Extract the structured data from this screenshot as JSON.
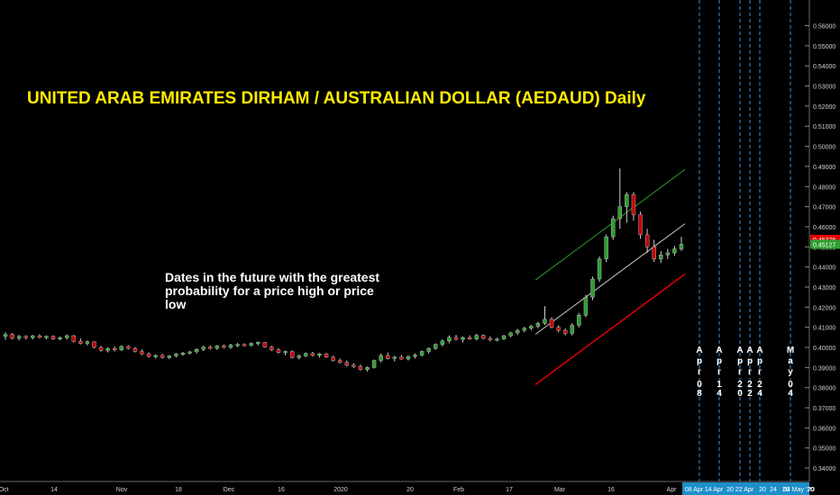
{
  "chart_data": {
    "type": "candlestick",
    "title": "UNITED ARAB EMIRATES DIRHAM / AUSTRALIAN DOLLAR (AEDAUD) Daily",
    "annotation": "Dates in the future with the greatest probability for a price high or price low",
    "x_ticks": [
      "Oct",
      "14",
      "Nov",
      "18",
      "Dec",
      "16",
      "2020",
      "20",
      "Feb",
      "17",
      "Mar",
      "16",
      "Apr",
      "08 Apr",
      "14 Apr",
      "20",
      "22 Apr",
      "20",
      "24",
      "20",
      "04 May '20",
      "20"
    ],
    "y_ticks": [
      "0.56000",
      "0.55000",
      "0.54000",
      "0.53000",
      "0.52000",
      "0.51000",
      "0.50000",
      "0.49000",
      "0.48000",
      "0.47000",
      "0.46000",
      "0.45000",
      "0.44000",
      "0.43000",
      "0.42000",
      "0.41000",
      "0.40000",
      "0.39000",
      "0.38000",
      "0.37000",
      "0.36000",
      "0.35000",
      "0.34000"
    ],
    "ylim": [
      0.3378,
      0.5656
    ],
    "price_labels": [
      {
        "value": 0.45375,
        "label": "0.45375",
        "color": "#e60000"
      },
      {
        "value": 0.45127,
        "label": "0.45127",
        "color": "#2e9e2e"
      }
    ],
    "future_dates": [
      {
        "label": "Apr 08",
        "x_label": "08 Apr"
      },
      {
        "label": "Apr 14",
        "x_label": "14 Apr"
      },
      {
        "label": "Apr 20",
        "x_label": "20"
      },
      {
        "label": "Apr 22",
        "x_label": "22 Apr"
      },
      {
        "label": "Apr 24",
        "x_label": "24"
      },
      {
        "label": "May 04",
        "x_label": "04 May '20"
      }
    ],
    "channel_lines": [
      {
        "name": "upper",
        "color": "#2e9e2e",
        "from": 0.4335,
        "to": 0.4885
      },
      {
        "name": "middle",
        "color": "#c8c8c8",
        "from": 0.4065,
        "to": 0.4615
      },
      {
        "name": "lower",
        "color": "#e00000",
        "from": 0.3815,
        "to": 0.4365
      }
    ],
    "candles": [
      [
        0.4055,
        0.4075,
        0.4038,
        0.4065
      ],
      [
        0.4065,
        0.4072,
        0.404,
        0.4045
      ],
      [
        0.4045,
        0.4062,
        0.4035,
        0.4055
      ],
      [
        0.4055,
        0.406,
        0.404,
        0.4048
      ],
      [
        0.4048,
        0.4062,
        0.404,
        0.4058
      ],
      [
        0.4058,
        0.4065,
        0.4045,
        0.405
      ],
      [
        0.405,
        0.406,
        0.404,
        0.4055
      ],
      [
        0.4055,
        0.406,
        0.4038,
        0.4042
      ],
      [
        0.4042,
        0.4055,
        0.4035,
        0.4048
      ],
      [
        0.4048,
        0.4065,
        0.404,
        0.4058
      ],
      [
        0.4058,
        0.4062,
        0.4025,
        0.403
      ],
      [
        0.403,
        0.4045,
        0.4015,
        0.402
      ],
      [
        0.402,
        0.4035,
        0.401,
        0.4028
      ],
      [
        0.4028,
        0.403,
        0.3995,
        0.4
      ],
      [
        0.4,
        0.4008,
        0.398,
        0.3985
      ],
      [
        0.3985,
        0.4,
        0.3975,
        0.3995
      ],
      [
        0.3995,
        0.4005,
        0.398,
        0.3988
      ],
      [
        0.3988,
        0.401,
        0.3982,
        0.4005
      ],
      [
        0.4005,
        0.401,
        0.399,
        0.3995
      ],
      [
        0.3995,
        0.4002,
        0.3975,
        0.398
      ],
      [
        0.398,
        0.399,
        0.3962,
        0.3968
      ],
      [
        0.3968,
        0.3975,
        0.395,
        0.3955
      ],
      [
        0.3955,
        0.3965,
        0.3945,
        0.396
      ],
      [
        0.396,
        0.3968,
        0.3945,
        0.395
      ],
      [
        0.395,
        0.3962,
        0.3942,
        0.3958
      ],
      [
        0.3958,
        0.3972,
        0.395,
        0.3968
      ],
      [
        0.3968,
        0.3978,
        0.3958,
        0.3972
      ],
      [
        0.3972,
        0.3982,
        0.3965,
        0.3978
      ],
      [
        0.3978,
        0.3995,
        0.397,
        0.399
      ],
      [
        0.399,
        0.4008,
        0.3982,
        0.4002
      ],
      [
        0.4002,
        0.401,
        0.399,
        0.3995
      ],
      [
        0.3995,
        0.4012,
        0.3988,
        0.4008
      ],
      [
        0.4008,
        0.4015,
        0.3995,
        0.4
      ],
      [
        0.4,
        0.4018,
        0.3992,
        0.4012
      ],
      [
        0.4012,
        0.4022,
        0.4002,
        0.4015
      ],
      [
        0.4015,
        0.402,
        0.4005,
        0.401
      ],
      [
        0.401,
        0.4025,
        0.4005,
        0.402
      ],
      [
        0.402,
        0.403,
        0.401,
        0.4025
      ],
      [
        0.4025,
        0.4028,
        0.3998,
        0.4002
      ],
      [
        0.4002,
        0.4008,
        0.3982,
        0.3988
      ],
      [
        0.3988,
        0.3995,
        0.397,
        0.3975
      ],
      [
        0.3975,
        0.3985,
        0.396,
        0.398
      ],
      [
        0.398,
        0.3985,
        0.3945,
        0.395
      ],
      [
        0.395,
        0.3965,
        0.394,
        0.3958
      ],
      [
        0.3958,
        0.3975,
        0.3952,
        0.397
      ],
      [
        0.397,
        0.3978,
        0.3955,
        0.396
      ],
      [
        0.396,
        0.3972,
        0.395,
        0.3968
      ],
      [
        0.3968,
        0.3972,
        0.3948,
        0.3952
      ],
      [
        0.3952,
        0.3958,
        0.393,
        0.3935
      ],
      [
        0.3935,
        0.3945,
        0.392,
        0.3925
      ],
      [
        0.3925,
        0.3935,
        0.3905,
        0.3912
      ],
      [
        0.3912,
        0.3922,
        0.3898,
        0.3905
      ],
      [
        0.3905,
        0.3915,
        0.3885,
        0.389
      ],
      [
        0.389,
        0.3905,
        0.388,
        0.39
      ],
      [
        0.39,
        0.394,
        0.3895,
        0.3935
      ],
      [
        0.3935,
        0.397,
        0.3925,
        0.396
      ],
      [
        0.396,
        0.3975,
        0.394,
        0.3945
      ],
      [
        0.3945,
        0.3958,
        0.393,
        0.3952
      ],
      [
        0.3952,
        0.3962,
        0.3938,
        0.3942
      ],
      [
        0.3942,
        0.396,
        0.3935,
        0.3955
      ],
      [
        0.3955,
        0.397,
        0.3945,
        0.3962
      ],
      [
        0.3962,
        0.3985,
        0.3955,
        0.398
      ],
      [
        0.398,
        0.4,
        0.397,
        0.3995
      ],
      [
        0.3995,
        0.402,
        0.3988,
        0.4015
      ],
      [
        0.4015,
        0.404,
        0.4005,
        0.4032
      ],
      [
        0.4032,
        0.406,
        0.402,
        0.405
      ],
      [
        0.405,
        0.4062,
        0.4035,
        0.404
      ],
      [
        0.404,
        0.4055,
        0.4025,
        0.4048
      ],
      [
        0.4048,
        0.406,
        0.4038,
        0.4042
      ],
      [
        0.4042,
        0.4068,
        0.4035,
        0.406
      ],
      [
        0.406,
        0.4065,
        0.404,
        0.4045
      ],
      [
        0.4045,
        0.4055,
        0.403,
        0.4038
      ],
      [
        0.4038,
        0.4048,
        0.403,
        0.4042
      ],
      [
        0.4042,
        0.4062,
        0.4038,
        0.4058
      ],
      [
        0.4058,
        0.4078,
        0.405,
        0.4072
      ],
      [
        0.4072,
        0.4092,
        0.4062,
        0.4085
      ],
      [
        0.4085,
        0.4102,
        0.4075,
        0.4095
      ],
      [
        0.4095,
        0.4112,
        0.4085,
        0.4105
      ],
      [
        0.4105,
        0.4128,
        0.4095,
        0.412
      ],
      [
        0.412,
        0.4205,
        0.4112,
        0.414
      ],
      [
        0.414,
        0.415,
        0.4095,
        0.41
      ],
      [
        0.41,
        0.411,
        0.4075,
        0.4085
      ],
      [
        0.4085,
        0.4095,
        0.406,
        0.407
      ],
      [
        0.407,
        0.412,
        0.406,
        0.411
      ],
      [
        0.411,
        0.4172,
        0.41,
        0.416
      ],
      [
        0.416,
        0.4262,
        0.415,
        0.425
      ],
      [
        0.425,
        0.4352,
        0.4235,
        0.434
      ],
      [
        0.434,
        0.4452,
        0.4325,
        0.444
      ],
      [
        0.444,
        0.4562,
        0.4425,
        0.455
      ],
      [
        0.455,
        0.4655,
        0.4535,
        0.464
      ],
      [
        0.464,
        0.489,
        0.459,
        0.47
      ],
      [
        0.47,
        0.4772,
        0.462,
        0.476
      ],
      [
        0.476,
        0.4772,
        0.463,
        0.466
      ],
      [
        0.466,
        0.4675,
        0.454,
        0.456
      ],
      [
        0.456,
        0.459,
        0.447,
        0.45
      ],
      [
        0.45,
        0.4535,
        0.4425,
        0.444
      ],
      [
        0.444,
        0.448,
        0.442,
        0.446
      ],
      [
        0.446,
        0.449,
        0.444,
        0.447
      ],
      [
        0.447,
        0.4505,
        0.4455,
        0.449
      ],
      [
        0.449,
        0.455,
        0.448,
        0.4513
      ]
    ]
  }
}
